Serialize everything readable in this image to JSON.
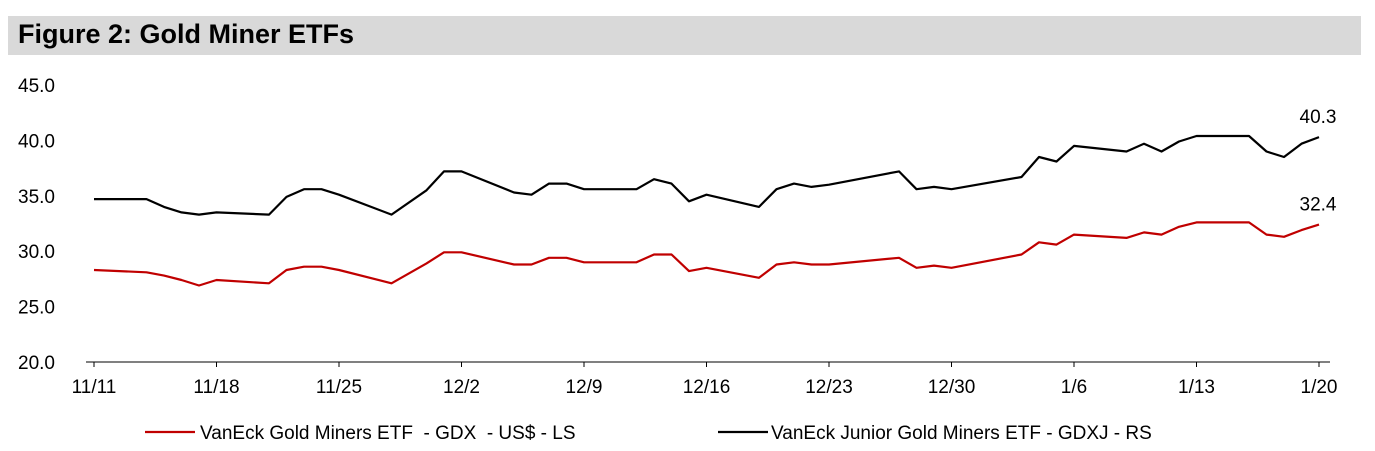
{
  "title": "Figure 2: Gold Miner ETFs",
  "chart_data": {
    "type": "line",
    "title": "Figure 2: Gold Miner ETFs",
    "xlabel": "",
    "ylabel": "",
    "x_unit": "days since 11/11",
    "ylim": [
      20,
      45
    ],
    "xlim": [
      0,
      70
    ],
    "yticks": [
      20,
      25,
      30,
      35,
      40,
      45
    ],
    "ytick_labels": [
      "20.0",
      "25.0",
      "30.0",
      "35.0",
      "40.0",
      "45.0"
    ],
    "xticks": [
      0,
      7,
      14,
      21,
      28,
      35,
      42,
      49,
      56,
      63,
      70
    ],
    "xtick_labels": [
      "11/11",
      "11/18",
      "11/25",
      "12/2",
      "12/9",
      "12/16",
      "12/23",
      "12/30",
      "1/6",
      "1/13",
      "1/20"
    ],
    "grid": false,
    "legend_position": "bottom",
    "x": [
      0,
      3,
      4,
      5,
      6,
      7,
      10,
      11,
      12,
      13,
      14,
      17,
      19,
      20,
      21,
      24,
      25,
      26,
      27,
      28,
      31,
      32,
      33,
      34,
      35,
      38,
      39,
      40,
      41,
      42,
      46,
      47,
      48,
      49,
      53,
      54,
      55,
      56,
      59,
      60,
      61,
      62,
      63,
      66,
      67,
      68,
      69,
      70
    ],
    "series": [
      {
        "name": "VanEck Gold Miners ETF  - GDX  - US$ - LS",
        "color": "#c00000",
        "end_label": "32.4",
        "values": [
          28.3,
          28.1,
          27.8,
          27.4,
          26.9,
          27.4,
          27.1,
          28.3,
          28.6,
          28.6,
          28.3,
          27.1,
          28.9,
          29.9,
          29.9,
          28.8,
          28.8,
          29.4,
          29.4,
          29.0,
          29.0,
          29.7,
          29.7,
          28.2,
          28.5,
          27.6,
          28.8,
          29.0,
          28.8,
          28.8,
          29.4,
          28.5,
          28.7,
          28.5,
          29.7,
          30.8,
          30.6,
          31.5,
          31.2,
          31.7,
          31.5,
          32.2,
          32.6,
          32.6,
          31.5,
          31.3,
          31.9,
          32.4
        ]
      },
      {
        "name": "VanEck Junior Gold Miners ETF - GDXJ - RS",
        "color": "#000000",
        "end_label": "40.3",
        "values": [
          34.7,
          34.7,
          34.0,
          33.5,
          33.3,
          33.5,
          33.3,
          34.9,
          35.6,
          35.6,
          35.1,
          33.3,
          35.5,
          37.2,
          37.2,
          35.3,
          35.1,
          36.1,
          36.1,
          35.6,
          35.6,
          36.5,
          36.1,
          34.5,
          35.1,
          34.0,
          35.6,
          36.1,
          35.8,
          36.0,
          37.2,
          35.6,
          35.8,
          35.6,
          36.7,
          38.5,
          38.1,
          39.5,
          39.0,
          39.7,
          39.0,
          39.9,
          40.4,
          40.4,
          39.0,
          38.5,
          39.7,
          40.3
        ]
      }
    ]
  }
}
